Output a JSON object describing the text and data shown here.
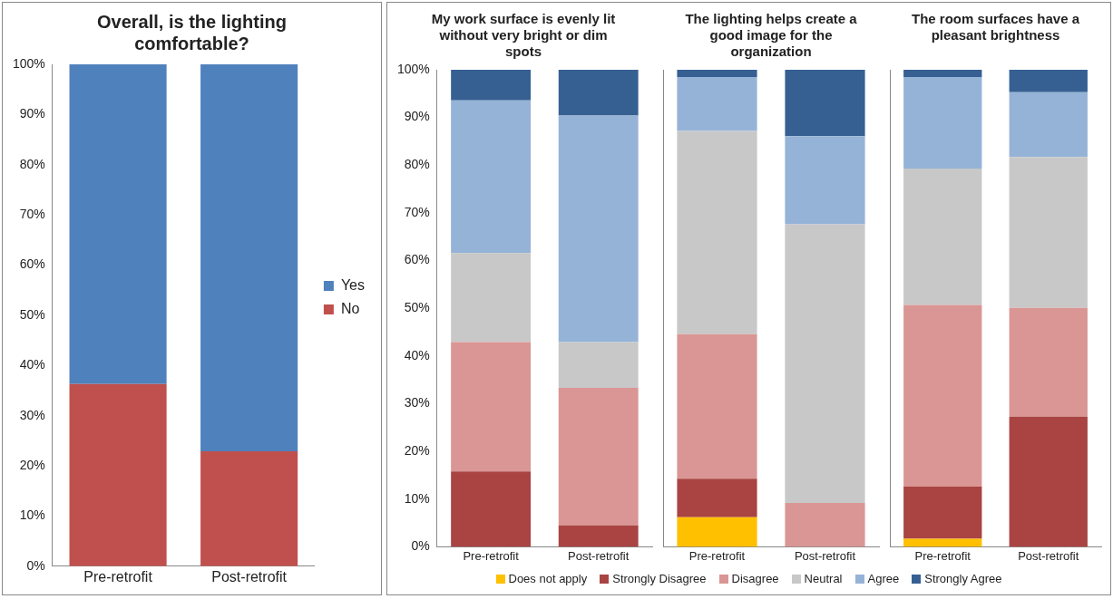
{
  "chart_data": [
    {
      "type": "bar",
      "title": "Overall, is the lighting comfortable?",
      "categories": [
        "Pre-retrofit",
        "Post-retrofit"
      ],
      "stacked": true,
      "legend": "right",
      "ylim": [
        0,
        100
      ],
      "yticks": [
        {
          "value": 0,
          "label": "0%"
        },
        {
          "value": 10,
          "label": "10%"
        },
        {
          "value": 20,
          "label": "20%"
        },
        {
          "value": 30,
          "label": "30%"
        },
        {
          "value": 40,
          "label": "40%"
        },
        {
          "value": 50,
          "label": "50%"
        },
        {
          "value": 60,
          "label": "60%"
        },
        {
          "value": 70,
          "label": "70%"
        },
        {
          "value": 80,
          "label": "80%"
        },
        {
          "value": 90,
          "label": "90%"
        },
        {
          "value": 100,
          "label": "100%"
        }
      ],
      "series": [
        {
          "name": "No",
          "color": "#c0504d",
          "values": [
            36.3,
            22.9
          ]
        },
        {
          "name": "Yes",
          "color": "#4f81bd",
          "values": [
            63.7,
            77.1
          ]
        }
      ]
    },
    {
      "type": "bar",
      "title": "My work surface is evenly lit without very bright or dim spots",
      "categories": [
        "Pre-retrofit",
        "Post-retrofit"
      ],
      "stacked": true,
      "ylim": [
        0,
        100
      ],
      "yticks": [
        {
          "value": 0,
          "label": "0%"
        },
        {
          "value": 10,
          "label": "10%"
        },
        {
          "value": 20,
          "label": "20%"
        },
        {
          "value": 30,
          "label": "30%"
        },
        {
          "value": 40,
          "label": "40%"
        },
        {
          "value": 50,
          "label": "50%"
        },
        {
          "value": 60,
          "label": "60%"
        },
        {
          "value": 70,
          "label": "70%"
        },
        {
          "value": 80,
          "label": "80%"
        },
        {
          "value": 90,
          "label": "90%"
        },
        {
          "value": 100,
          "label": "100%"
        }
      ],
      "series": [
        {
          "color": "#ffc000",
          "values": [
            null,
            null
          ]
        },
        {
          "color": "#a94442",
          "values": [
            15.8,
            4.5
          ]
        },
        {
          "color": "#d99694",
          "values": [
            27.1,
            28.8
          ]
        },
        {
          "color": "#c8c8c8",
          "values": [
            18.7,
            9.6
          ]
        },
        {
          "color": "#95b3d7",
          "values": [
            32.0,
            47.5
          ]
        },
        {
          "color": "#366092",
          "values": [
            6.4,
            9.6
          ]
        }
      ]
    },
    {
      "type": "bar",
      "title": "The lighting helps create a good image for the organization",
      "categories": [
        "Pre-retrofit",
        "Post-retrofit"
      ],
      "stacked": true,
      "tick_labels": "x",
      "legend": "bottom",
      "ylim": [
        0,
        100
      ],
      "series": [
        {
          "name": "Does not apply",
          "color": "#ffc000",
          "values": [
            6.2,
            null
          ]
        },
        {
          "name": "Strongly Disagree",
          "color": "#a94442",
          "values": [
            8.1,
            null
          ]
        },
        {
          "name": "Disagree",
          "color": "#d99694",
          "values": [
            30.3,
            9.2
          ]
        },
        {
          "name": "Neutral",
          "color": "#c8c8c8",
          "values": [
            42.6,
            58.4
          ]
        },
        {
          "name": "Agree",
          "color": "#95b3d7",
          "values": [
            11.3,
            18.5
          ]
        },
        {
          "name": "Strongly Agree",
          "color": "#366092",
          "values": [
            1.5,
            13.9
          ]
        }
      ]
    },
    {
      "type": "bar",
      "title": "The room surfaces have a pleasant brightness",
      "categories": [
        "Pre-retrofit",
        "Post-retrofit"
      ],
      "stacked": true,
      "tick_labels": "x",
      "ylim": [
        0,
        100
      ],
      "series": [
        {
          "color": "#ffc000",
          "values": [
            1.7,
            null
          ]
        },
        {
          "color": "#a94442",
          "values": [
            10.9,
            27.3
          ]
        },
        {
          "color": "#d99694",
          "values": [
            38.1,
            22.8
          ]
        },
        {
          "color": "#c8c8c8",
          "values": [
            28.6,
            31.6
          ]
        },
        {
          "color": "#95b3d7",
          "values": [
            19.2,
            13.6
          ]
        },
        {
          "color": "#366092",
          "values": [
            1.5,
            4.7
          ]
        }
      ]
    }
  ]
}
